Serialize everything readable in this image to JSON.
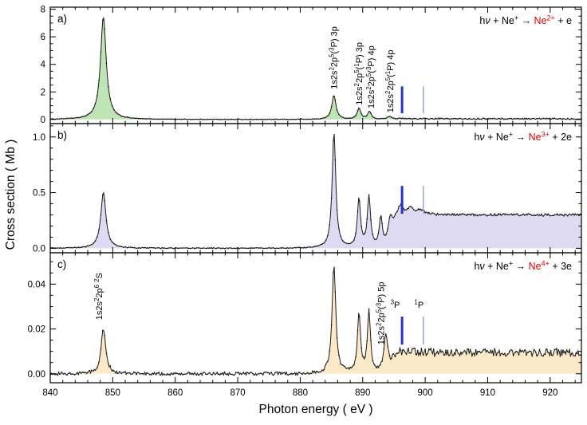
{
  "figure": {
    "xlabel": "Photon energy  ( eV )",
    "ylabel": "Cross section  ( Mb )",
    "x_range": [
      840,
      925
    ],
    "x_major_ticks": [
      840,
      850,
      860,
      870,
      880,
      890,
      900,
      910,
      920
    ],
    "x_tick_labels": [
      "840",
      "850",
      "860",
      "870",
      "880",
      "890",
      "900",
      "910",
      "920"
    ],
    "x_minor_step": 2
  },
  "colors": {
    "frame": "#000000",
    "curve": "#1a1a1a",
    "product_red": "#e60000",
    "threshold_dark_blue": "#2433c4",
    "threshold_light_blue": "#97a3dd",
    "panel_a_fill": "#bfe5b4",
    "panel_b_fill": "#dedaf3",
    "panel_c_fill": "#fce9c8"
  },
  "chart_data": [
    {
      "id": "a",
      "type": "area",
      "panel_label": "a)",
      "reaction_tokens": [
        {
          "t": "h"
        },
        {
          "t": "ν",
          "i": true
        },
        {
          "t": " + Ne"
        },
        {
          "t": "+",
          "s": "sup"
        },
        {
          "t": " → "
        },
        {
          "t": "Ne",
          "c": "#e60000"
        },
        {
          "t": "2+",
          "s": "sup",
          "c": "#e60000"
        },
        {
          "t": " + e"
        }
      ],
      "ylim": [
        -0.3,
        8.15
      ],
      "y_major_ticks": [
        0,
        2,
        4,
        6,
        8
      ],
      "y_tick_labels": [
        "0",
        "2",
        "4",
        "6",
        "8"
      ],
      "y_minor_step": 0.5,
      "fill_color": "#bfe5b4",
      "peaks": [
        {
          "center": 848.5,
          "height": 7.45,
          "fwhm": 1.1
        },
        {
          "center": 885.4,
          "height": 1.75,
          "fwhm": 0.8
        },
        {
          "center": 889.4,
          "height": 0.8,
          "fwhm": 0.7
        },
        {
          "center": 891.1,
          "height": 0.55,
          "fwhm": 0.7
        },
        {
          "center": 894.3,
          "height": 0.22,
          "fwhm": 0.9
        }
      ],
      "continuum": {
        "onset": 895.2,
        "level": 0.05
      },
      "noise_base": 0.02,
      "noise_cont": 0.045,
      "threshold_lines": [
        {
          "x": 896.3,
          "y1": 0.45,
          "y2": 2.4,
          "width": 3,
          "color": "#2433c4"
        },
        {
          "x": 899.7,
          "y1": 0.45,
          "y2": 2.4,
          "width": 1.5,
          "color": "#97a3dd"
        }
      ],
      "annotations": [
        {
          "x": 885.4,
          "y": 2.2,
          "rotated": true,
          "tokens": [
            {
              "t": "1s2s"
            },
            {
              "t": "2",
              "s": "sup"
            },
            {
              "t": "2p"
            },
            {
              "t": "5",
              "s": "sup"
            },
            {
              "t": "("
            },
            {
              "t": "3",
              "s": "sup"
            },
            {
              "t": "P) 3p"
            }
          ]
        },
        {
          "x": 889.4,
          "y": 1.05,
          "rotated": true,
          "tokens": [
            {
              "t": "1s2s"
            },
            {
              "t": "2",
              "s": "sup"
            },
            {
              "t": "2p"
            },
            {
              "t": "5",
              "s": "sup"
            },
            {
              "t": "("
            },
            {
              "t": "1",
              "s": "sup"
            },
            {
              "t": "P) 3p"
            }
          ]
        },
        {
          "x": 891.3,
          "y": 0.8,
          "rotated": true,
          "tokens": [
            {
              "t": "1s2s"
            },
            {
              "t": "2",
              "s": "sup"
            },
            {
              "t": "2p"
            },
            {
              "t": "5",
              "s": "sup"
            },
            {
              "t": "("
            },
            {
              "t": "3",
              "s": "sup"
            },
            {
              "t": "P) 4p"
            }
          ]
        },
        {
          "x": 894.4,
          "y": 0.5,
          "rotated": true,
          "tokens": [
            {
              "t": "1s2s"
            },
            {
              "t": "2",
              "s": "sup"
            },
            {
              "t": "2p"
            },
            {
              "t": "5",
              "s": "sup"
            },
            {
              "t": "("
            },
            {
              "t": "1",
              "s": "sup"
            },
            {
              "t": "P) 4p"
            }
          ]
        }
      ]
    },
    {
      "id": "b",
      "type": "area",
      "panel_label": "b)",
      "reaction_tokens": [
        {
          "t": "h"
        },
        {
          "t": "ν",
          "i": true
        },
        {
          "t": " + Ne"
        },
        {
          "t": "+",
          "s": "sup"
        },
        {
          "t": " → "
        },
        {
          "t": "Ne",
          "c": "#e60000"
        },
        {
          "t": "3+",
          "s": "sup",
          "c": "#e60000"
        },
        {
          "t": " + 2e"
        }
      ],
      "ylim": [
        -0.04,
        1.12
      ],
      "y_major_ticks": [
        0,
        0.5,
        1.0
      ],
      "y_tick_labels": [
        "0.0",
        "0.5",
        "1.0"
      ],
      "y_minor_step": 0.1,
      "fill_color": "#dedaf3",
      "peaks": [
        {
          "center": 848.5,
          "height": 0.5,
          "fwhm": 1.0
        },
        {
          "center": 885.4,
          "height": 1.04,
          "fwhm": 0.7
        },
        {
          "center": 889.4,
          "height": 0.44,
          "fwhm": 0.6
        },
        {
          "center": 891.0,
          "height": 0.45,
          "fwhm": 0.6
        },
        {
          "center": 892.9,
          "height": 0.26,
          "fwhm": 0.6
        },
        {
          "center": 894.4,
          "height": 0.22,
          "fwhm": 0.9
        },
        {
          "center": 896.0,
          "height": 0.07,
          "fwhm": 1.0
        },
        {
          "center": 897.6,
          "height": 0.05,
          "fwhm": 1.2
        },
        {
          "center": 899.3,
          "height": 0.04,
          "fwhm": 1.5
        }
      ],
      "continuum": {
        "onset": 894.9,
        "level": 0.3
      },
      "noise_base": 0.004,
      "noise_cont": 0.011,
      "threshold_lines": [
        {
          "x": 896.3,
          "y1": 0.31,
          "y2": 0.56,
          "width": 3,
          "color": "#2433c4"
        },
        {
          "x": 899.7,
          "y1": 0.31,
          "y2": 0.56,
          "width": 1.5,
          "color": "#97a3dd"
        }
      ],
      "annotations": []
    },
    {
      "id": "c",
      "type": "area",
      "panel_label": "c)",
      "reaction_tokens": [
        {
          "t": "h"
        },
        {
          "t": "ν",
          "i": true
        },
        {
          "t": " + Ne"
        },
        {
          "t": "+",
          "s": "sup"
        },
        {
          "t": " → "
        },
        {
          "t": "Ne",
          "c": "#e60000"
        },
        {
          "t": "4+",
          "s": "sup",
          "c": "#e60000"
        },
        {
          "t": " + 3e"
        }
      ],
      "ylim": [
        -0.004,
        0.054
      ],
      "y_major_ticks": [
        0,
        0.02,
        0.04
      ],
      "y_tick_labels": [
        "0.00",
        "0.02",
        "0.04"
      ],
      "y_minor_step": 0.005,
      "fill_color": "#fce9c8",
      "peaks": [
        {
          "center": 848.5,
          "height": 0.02,
          "fwhm": 0.9
        },
        {
          "center": 885.4,
          "height": 0.049,
          "fwhm": 0.7
        },
        {
          "center": 889.4,
          "height": 0.026,
          "fwhm": 0.6
        },
        {
          "center": 891.0,
          "height": 0.027,
          "fwhm": 0.6
        },
        {
          "center": 893.7,
          "height": 0.017,
          "fwhm": 0.8
        }
      ],
      "continuum": {
        "onset": 894.7,
        "level": 0.0095
      },
      "noise_base": 0.0007,
      "noise_cont": 0.0017,
      "threshold_lines": [
        {
          "x": 896.3,
          "y1": 0.013,
          "y2": 0.0255,
          "width": 3,
          "color": "#2433c4"
        },
        {
          "x": 899.7,
          "y1": 0.013,
          "y2": 0.0255,
          "width": 1.5,
          "color": "#97a3dd"
        }
      ],
      "annotations": [
        {
          "x": 847.8,
          "y": 0.024,
          "rotated": true,
          "tokens": [
            {
              "t": "1s2s"
            },
            {
              "t": "2",
              "s": "sup"
            },
            {
              "t": "2p"
            },
            {
              "t": "6",
              "s": "sup"
            },
            {
              "t": " "
            },
            {
              "t": "2",
              "s": "sup"
            },
            {
              "t": "S"
            }
          ]
        },
        {
          "x": 892.9,
          "y": 0.013,
          "rotated": true,
          "tokens": [
            {
              "t": "1s2s"
            },
            {
              "t": "2",
              "s": "sup"
            },
            {
              "t": "2p"
            },
            {
              "t": "5",
              "s": "sup"
            },
            {
              "t": "("
            },
            {
              "t": "3",
              "s": "sup"
            },
            {
              "t": "P) 5p"
            }
          ]
        },
        {
          "x": 895.2,
          "y": 0.0295,
          "rotated": false,
          "tokens": [
            {
              "t": "3",
              "s": "sup"
            },
            {
              "t": "P"
            }
          ]
        },
        {
          "x": 899.0,
          "y": 0.0295,
          "rotated": false,
          "tokens": [
            {
              "t": "1",
              "s": "sup"
            },
            {
              "t": "P"
            }
          ]
        }
      ]
    }
  ]
}
